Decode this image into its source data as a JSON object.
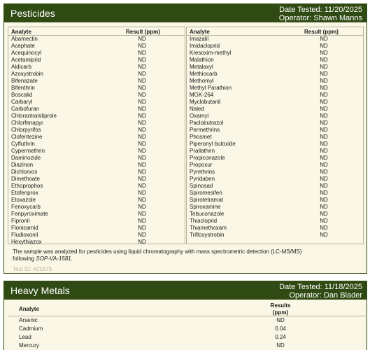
{
  "pesticides": {
    "title": "Pesticides",
    "date_tested": "Date Tested: 11/20/2025",
    "operator": "Operator: Shawn Manns",
    "col_analyte": "Analyte",
    "col_result": "Result (ppm)",
    "left": [
      [
        "Abamectin",
        "ND"
      ],
      [
        "Acephate",
        "ND"
      ],
      [
        "Acequinocyl",
        "ND"
      ],
      [
        "Acetamiprid",
        "ND"
      ],
      [
        "Aldicarb",
        "ND"
      ],
      [
        "Azoxystrobin",
        "ND"
      ],
      [
        "Bifenazate",
        "ND"
      ],
      [
        "Bifenthrin",
        "ND"
      ],
      [
        "Boscalid",
        "ND"
      ],
      [
        "Carbaryl",
        "ND"
      ],
      [
        "Carbofuran",
        "ND"
      ],
      [
        "Chlorantraniliprole",
        "ND"
      ],
      [
        "Chlorfenapyr",
        "ND"
      ],
      [
        "Chlorpyrifos",
        "ND"
      ],
      [
        "Clofentezine",
        "ND"
      ],
      [
        "Cyfluthrin",
        "ND"
      ],
      [
        "Cypermethrin",
        "ND"
      ],
      [
        "Daminozide",
        "ND"
      ],
      [
        "Diazinon",
        "ND"
      ],
      [
        "Dichlorvos",
        "ND"
      ],
      [
        "Dimethoate",
        "ND"
      ],
      [
        "Ethoprophos",
        "ND"
      ],
      [
        "Etofenprox",
        "ND"
      ],
      [
        "Etoxazole",
        "ND"
      ],
      [
        "Fenoxycarb",
        "ND"
      ],
      [
        "Fenpyroximate",
        "ND"
      ],
      [
        "Fipronil",
        "ND"
      ],
      [
        "Flonicamid",
        "ND"
      ],
      [
        "Fludioxonil",
        "ND"
      ],
      [
        "Hexythiazox",
        "ND"
      ]
    ],
    "right": [
      [
        "Imazalil",
        "ND"
      ],
      [
        "Imidacloprid",
        "ND"
      ],
      [
        "Kresoxim-methyl",
        "ND"
      ],
      [
        "Malathion",
        "ND"
      ],
      [
        "Metalaxyl",
        "ND"
      ],
      [
        "Methiocarb",
        "ND"
      ],
      [
        "Methomyl",
        "ND"
      ],
      [
        "Methyl Parathion",
        "ND"
      ],
      [
        "MGK-264",
        "ND"
      ],
      [
        "Myclobutanil",
        "ND"
      ],
      [
        "Naled",
        "ND"
      ],
      [
        "Oxamyl",
        "ND"
      ],
      [
        "Paclobutrazol",
        "ND"
      ],
      [
        "Permethrins",
        "ND"
      ],
      [
        "Phosmet",
        "ND"
      ],
      [
        "Piperonyl butoxide",
        "ND"
      ],
      [
        "Prallathrin",
        "ND"
      ],
      [
        "Propiconazole",
        "ND"
      ],
      [
        "Propoxur",
        "ND"
      ],
      [
        "Pyrethrins",
        "ND"
      ],
      [
        "Pyridaben",
        "ND"
      ],
      [
        "Spinosad",
        "ND"
      ],
      [
        "Spiromesifen",
        "ND"
      ],
      [
        "Spirotetramat",
        "ND"
      ],
      [
        "Spiroxamine",
        "ND"
      ],
      [
        "Tebuconazole",
        "ND"
      ],
      [
        "Thiacloprid",
        "ND"
      ],
      [
        "Thiamethoxam",
        "ND"
      ],
      [
        "Trifloxystrobin",
        "ND"
      ]
    ],
    "note_text": "The sample was analyzed for pesticides using liquid chromatography with mass spectrometric detection (LC-MS/MS) following",
    "note_method": "SOP-VA-1581.",
    "test_id": "Test ID: #21675"
  },
  "metals": {
    "title": "Heavy Metals",
    "date_tested": "Date Tested: 11/18/2025",
    "operator": "Operator: Dan Blader",
    "col_analyte": "Analyte",
    "col_result_line1": "Results",
    "col_result_line2": "(ppm)",
    "rows": [
      [
        "Arsenic",
        "ND"
      ],
      [
        "Cadmium",
        "0.04"
      ],
      [
        "Lead",
        "0.24"
      ],
      [
        "Mercury",
        "ND"
      ]
    ]
  },
  "colors": {
    "header_bg": "#2f4a13",
    "panel_bg": "#fbf7e6",
    "border": "#b5b29a"
  }
}
